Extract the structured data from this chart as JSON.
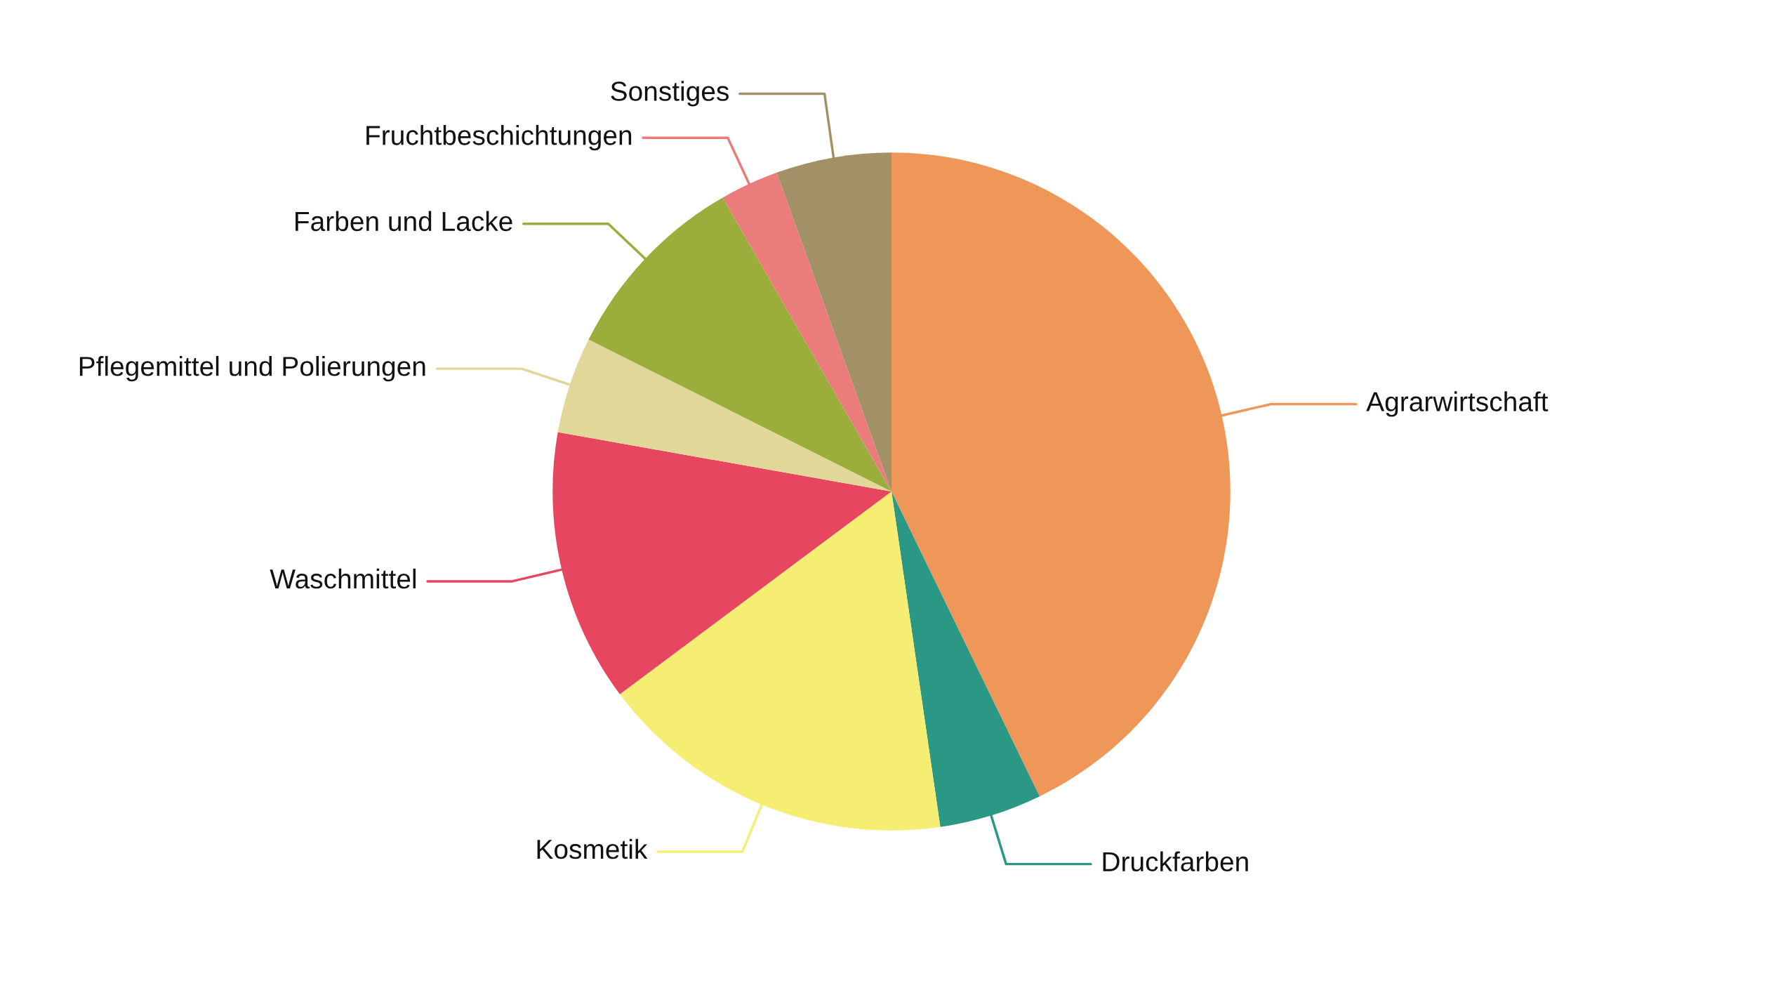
{
  "chart_data": {
    "type": "pie",
    "categories": [
      "Agrarwirtschaft",
      "Druckfarben",
      "Kosmetik",
      "Waschmittel",
      "Pflegemittel und Polierungen",
      "Farben und Lacke",
      "Fruchtbeschichtungen",
      "Sonstiges"
    ],
    "values": [
      42.8,
      4.9,
      17.1,
      13.0,
      4.6,
      9.3,
      2.8,
      5.5
    ],
    "colors": [
      "#ef9758",
      "#2b9785",
      "#f6ed73",
      "#e6465f",
      "#e1d798",
      "#9bad3b",
      "#eb7c7c",
      "#a29066"
    ]
  }
}
